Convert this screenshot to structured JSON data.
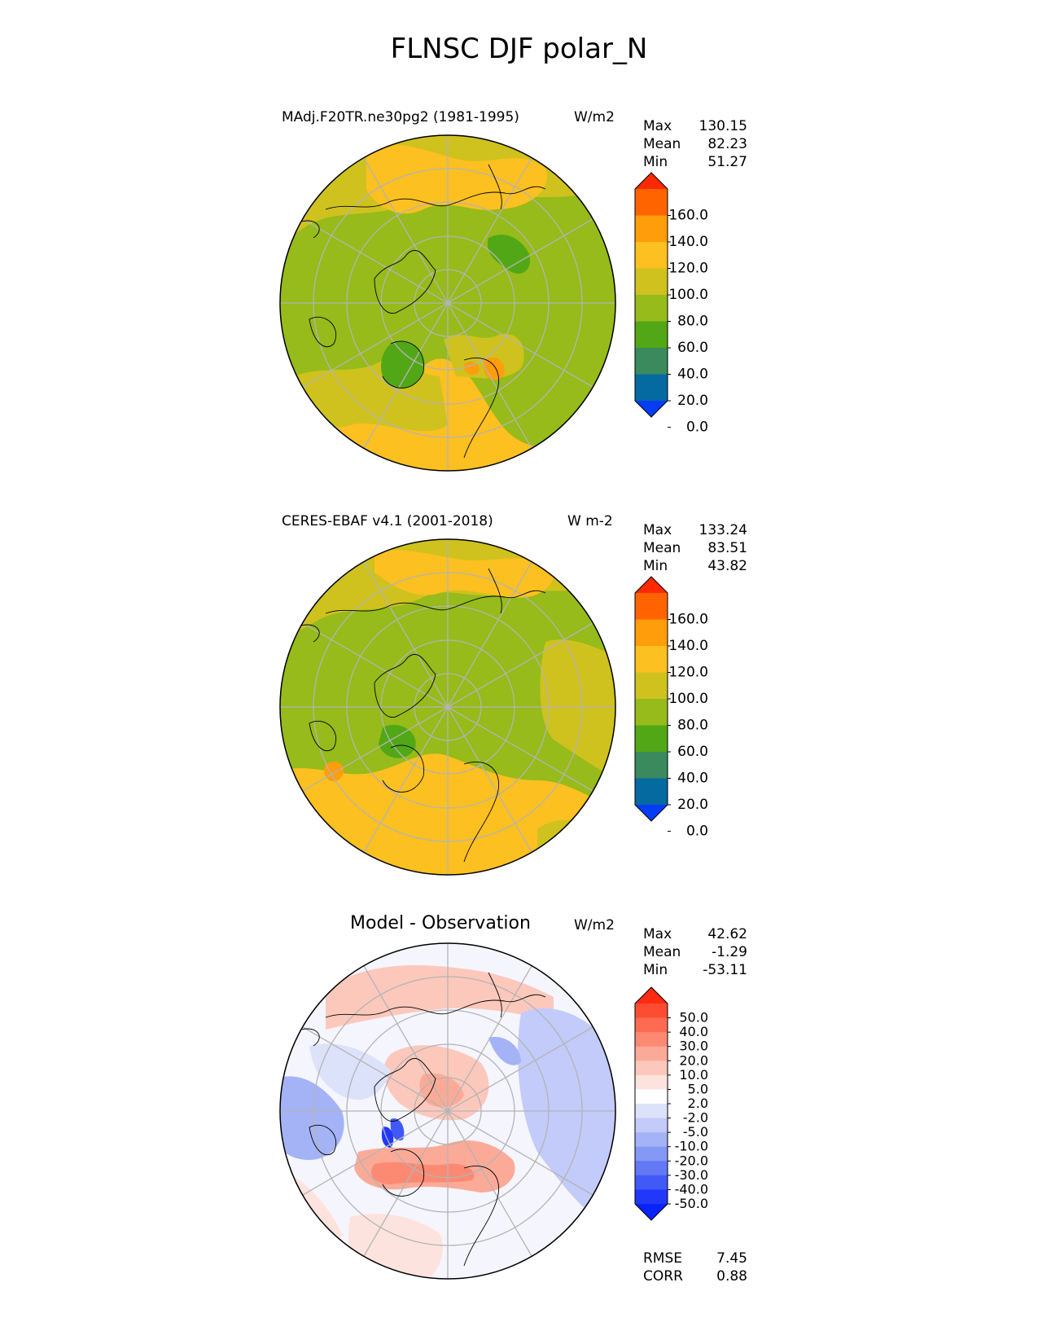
{
  "title": "FLNSC DJF polar_N",
  "panels": [
    {
      "id": "test",
      "title": "MAdj.F20TR.ne30pg2 (1981-1995)",
      "units": "W/m2",
      "stats": [
        {
          "label": "Max",
          "value": "130.15"
        },
        {
          "label": "Mean",
          "value": "82.23"
        },
        {
          "label": "Min",
          "value": "51.27"
        }
      ],
      "colorbar": {
        "ticks": [
          "160.0",
          "140.0",
          "120.0",
          "100.0",
          "80.0",
          "60.0",
          "40.0",
          "20.0",
          "0.0"
        ],
        "colors": [
          "#ff2a00",
          "#ff6400",
          "#ff9d0a",
          "#fcc020",
          "#cfc21e",
          "#96bb1a",
          "#52a716",
          "#3a8a5e",
          "#046aa0",
          "#053cf5"
        ]
      }
    },
    {
      "id": "reference",
      "title": "CERES-EBAF v4.1 (2001-2018)",
      "units": "W m-2",
      "stats": [
        {
          "label": "Max",
          "value": "133.24"
        },
        {
          "label": "Mean",
          "value": "83.51"
        },
        {
          "label": "Min",
          "value": "43.82"
        }
      ],
      "colorbar": {
        "ticks": [
          "160.0",
          "140.0",
          "120.0",
          "100.0",
          "80.0",
          "60.0",
          "40.0",
          "20.0",
          "0.0"
        ],
        "colors": [
          "#ff2a00",
          "#ff6400",
          "#ff9d0a",
          "#fcc020",
          "#cfc21e",
          "#96bb1a",
          "#52a716",
          "#3a8a5e",
          "#046aa0",
          "#053cf5"
        ]
      }
    },
    {
      "id": "diff",
      "title": "Model - Observation",
      "units": "W/m2",
      "stats": [
        {
          "label": "Max",
          "value": "42.62"
        },
        {
          "label": "Mean",
          "value": "-1.29"
        },
        {
          "label": "Min",
          "value": "-53.11"
        }
      ],
      "colorbar": {
        "ticks": [
          "50.0",
          "40.0",
          "30.0",
          "20.0",
          "10.0",
          "5.0",
          "2.0",
          "-2.0",
          "-5.0",
          "-10.0",
          "-20.0",
          "-30.0",
          "-40.0",
          "-50.0"
        ],
        "colors": [
          "#fe2b10",
          "#fc4d33",
          "#fc6b52",
          "#fc8a73",
          "#fcaa98",
          "#fcc8bc",
          "#fde3dd",
          "#ffffff",
          "#dde2fb",
          "#c2cbf9",
          "#a4b3f6",
          "#8498f5",
          "#6378f5",
          "#4159f7",
          "#2138fa",
          "#0824fb"
        ]
      },
      "metrics": [
        {
          "label": "RMSE",
          "value": "7.45"
        },
        {
          "label": "CORR",
          "value": "0.88"
        }
      ]
    }
  ]
}
